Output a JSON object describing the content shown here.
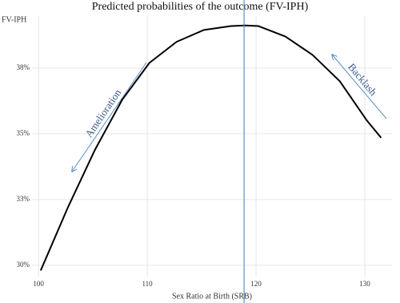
{
  "chart_data": {
    "type": "line",
    "title": "Predicted probabilities of the outcome (FV-IPH)",
    "x_label": "Sex Ratio at Birth (SRB)",
    "y_label": "FV-IPH",
    "x": [
      100.2,
      102.7,
      105.2,
      107.7,
      110.2,
      112.7,
      115.2,
      117.7,
      119,
      120.2,
      122.7,
      125.2,
      127.7,
      130.2,
      131.5
    ],
    "series": [
      {
        "name": "FV-IPH",
        "color": "#000000",
        "values": [
          29.8,
          32.2,
          34.4,
          36.3,
          37.7,
          38.5,
          38.95,
          39.1,
          39.12,
          39.1,
          38.7,
          38.0,
          37.0,
          35.5,
          34.85
        ]
      }
    ],
    "xlim": [
      99.4,
      132.5
    ],
    "ylim": [
      29.57,
      39.48
    ],
    "xticks": [
      100,
      110,
      120,
      130
    ],
    "yticks": [
      {
        "value": 30,
        "label": "30%"
      },
      {
        "value": 32.5,
        "label": "33%"
      },
      {
        "value": 35,
        "label": "35%"
      },
      {
        "value": 37.5,
        "label": "38%"
      }
    ],
    "grid": true,
    "vline": {
      "value": 118.9,
      "color": "#5b8fc9"
    },
    "annotations": [
      "Amelioration",
      "Backlash"
    ]
  }
}
